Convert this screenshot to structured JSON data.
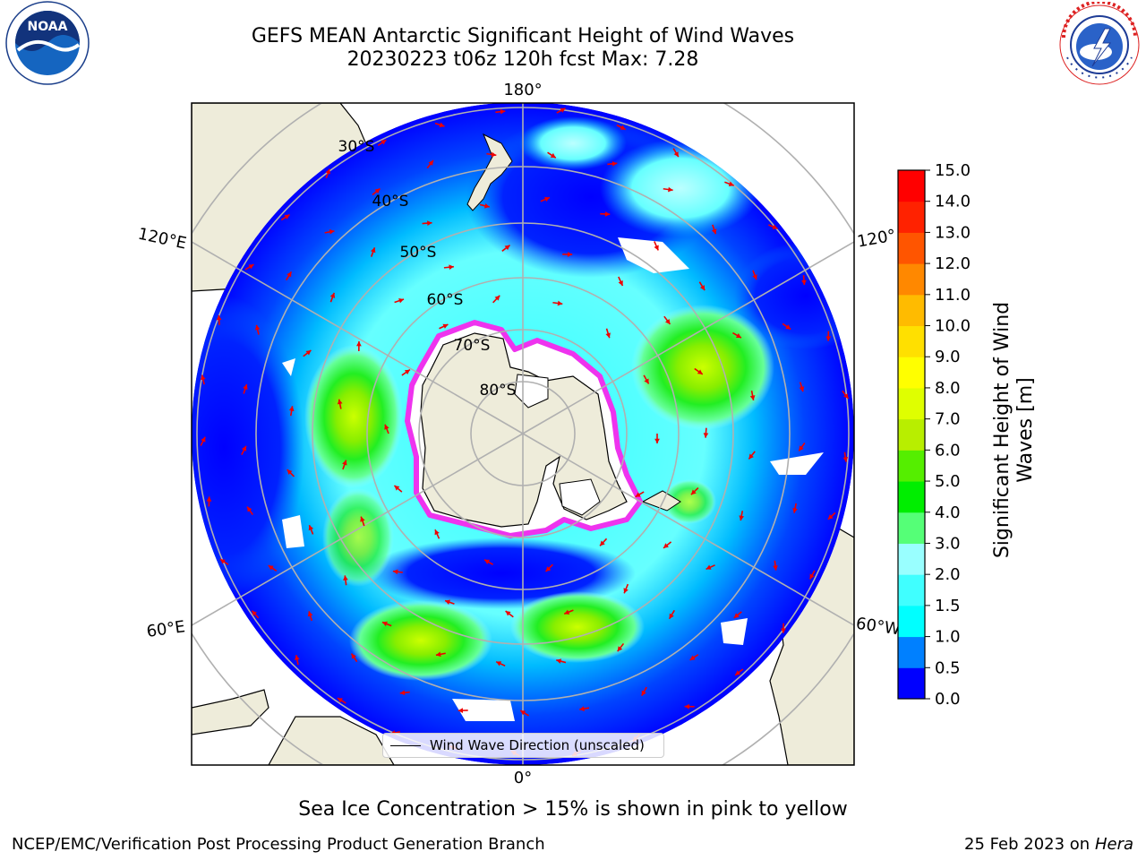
{
  "header": {
    "title_line1": "GEFS MEAN Antarctic Significant Height of Wind Waves",
    "title_line2": "20230223 t06z 120h fcst   Max: 7.28"
  },
  "logos": {
    "left": {
      "icon": "noaa-logo-icon",
      "text": "NOAA",
      "ring_text": "NATIONAL OCEANIC AND ATMOSPHERIC ADMINISTRATION · U.S. DEPARTMENT OF COMMERCE"
    },
    "right": {
      "icon": "nws-logo-icon",
      "ring_text": "NATIONAL WEATHER SERVICE"
    }
  },
  "map": {
    "longitude_labels": {
      "top": "180°",
      "bottom": "0°",
      "upper_left": "120°E",
      "lower_left": "60°E",
      "upper_right": "120°",
      "lower_right": "60°W"
    },
    "latitude_labels": [
      "30°S",
      "40°S",
      "50°S",
      "60°S",
      "70°S",
      "80°S"
    ],
    "legend": {
      "label": "Wind Wave Direction (unscaled)"
    },
    "colors": {
      "land": "#eeecda",
      "ice_white": "#ffffff",
      "ice_edge": "#ee33ee",
      "arrow": "#ee0000",
      "grid": "#b0b0b0"
    }
  },
  "colorbar": {
    "label": "Significant Height of Wind Waves [m]",
    "label_line1": "Significant Height of Wind",
    "label_line2": "Waves [m]",
    "ticks": [
      "0.0",
      "0.5",
      "1.0",
      "1.5",
      "2.0",
      "3.0",
      "4.0",
      "5.0",
      "6.0",
      "7.0",
      "8.0",
      "9.0",
      "10.0",
      "11.0",
      "12.0",
      "13.0",
      "14.0",
      "15.0"
    ],
    "colors": [
      "#0000ff",
      "#0080ff",
      "#00ffff",
      "#40ffff",
      "#99ffff",
      "#55ff77",
      "#00ee00",
      "#55ee00",
      "#b8ee00",
      "#dfff00",
      "#ffff00",
      "#ffe000",
      "#ffbb00",
      "#ff8800",
      "#ff5500",
      "#ff2200",
      "#ff0000"
    ]
  },
  "caption": "Sea Ice Concentration > 15% is shown in pink to yellow",
  "footer": {
    "left": "NCEP/EMC/Verification Post Processing Product Generation Branch",
    "right_date": "25 Feb 2023 on",
    "right_host": "Hera"
  }
}
